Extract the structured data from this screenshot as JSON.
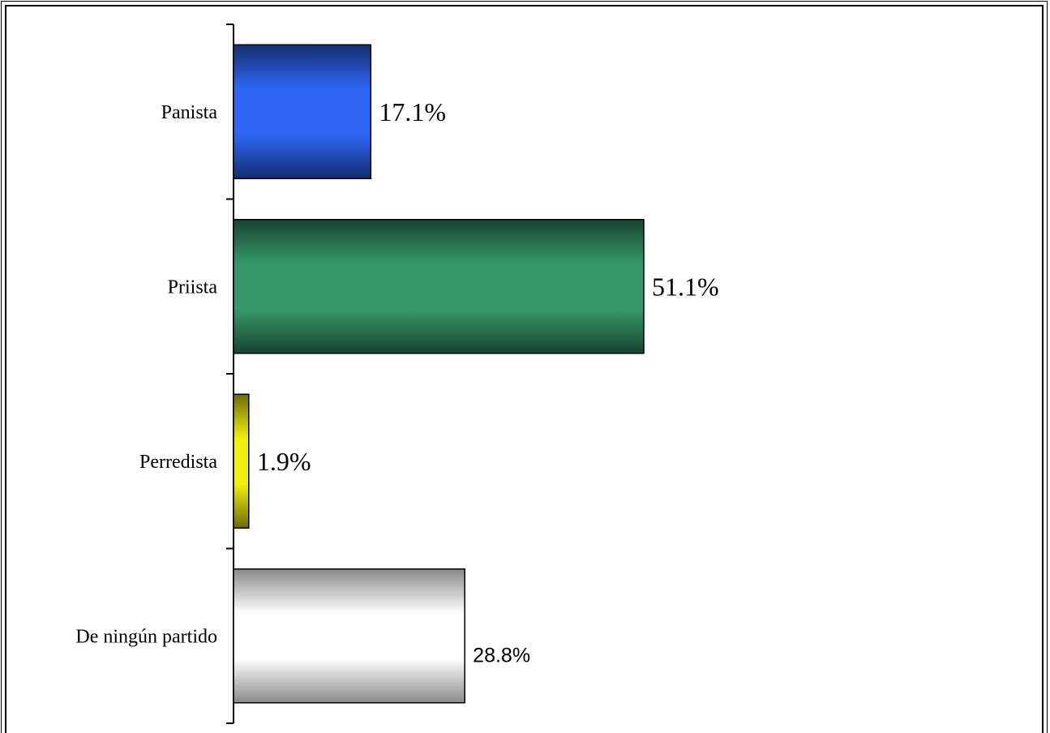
{
  "chart_data": {
    "type": "bar",
    "orientation": "horizontal",
    "categories": [
      "Panista",
      "Priista",
      "Perredista",
      "De ningún partido"
    ],
    "values": [
      17.1,
      51.1,
      1.9,
      28.8
    ],
    "value_labels": [
      "17.1%",
      "51.1%",
      "1.9%",
      "28.8%"
    ],
    "colors": [
      "#2f66f5",
      "#35976a",
      "#f2ef10",
      "#ffffff"
    ],
    "title": "",
    "xlabel": "",
    "ylabel": "",
    "xlim": [
      0,
      51.1
    ],
    "grid": false,
    "legend": "none"
  }
}
